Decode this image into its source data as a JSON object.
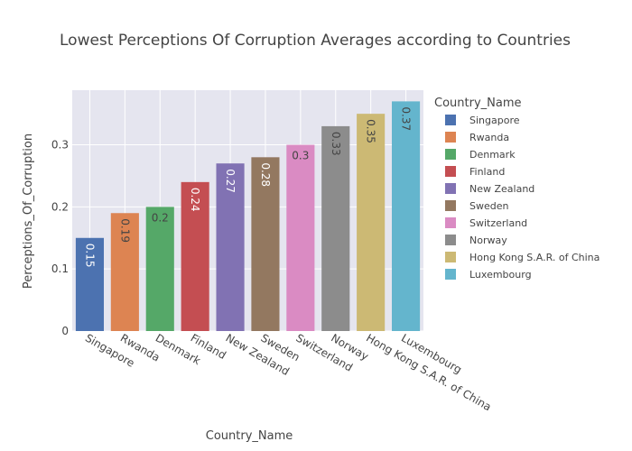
{
  "chart_data": {
    "type": "bar",
    "title": "Lowest Perceptions Of Corruption Averages according to Countries",
    "xlabel": "Country_Name",
    "ylabel": "Perceptions_Of_Corruption",
    "legend_title": "Country_Name",
    "legend_position": "right",
    "grid": true,
    "ylim": [
      0,
      0.388
    ],
    "yticks": [
      0,
      0.1,
      0.2,
      0.3
    ],
    "ytick_labels": [
      "0",
      "0.1",
      "0.2",
      "0.3"
    ],
    "categories": [
      "Singapore",
      "Rwanda",
      "Denmark",
      "Finland",
      "New Zealand",
      "Sweden",
      "Switzerland",
      "Norway",
      "Hong Kong S.A.R. of China",
      "Luxembourg"
    ],
    "values": [
      0.15,
      0.19,
      0.2,
      0.24,
      0.27,
      0.28,
      0.3,
      0.33,
      0.35,
      0.37
    ],
    "data_labels": [
      "0.15",
      "0.19",
      "0.2",
      "0.24",
      "0.27",
      "0.28",
      "0.3",
      "0.33",
      "0.35",
      "0.37"
    ],
    "colors": [
      "#4C72B0",
      "#DD8452",
      "#55A868",
      "#C44E52",
      "#8172B3",
      "#937860",
      "#DA8BC3",
      "#8C8C8C",
      "#CCB974",
      "#64B5CD"
    ],
    "label_colors": [
      "#ffffff",
      "#444444",
      "#444444",
      "#ffffff",
      "#ffffff",
      "#ffffff",
      "#444444",
      "#444444",
      "#444444",
      "#444444"
    ],
    "label_rotated": [
      true,
      true,
      false,
      true,
      true,
      true,
      false,
      true,
      true,
      true
    ]
  }
}
